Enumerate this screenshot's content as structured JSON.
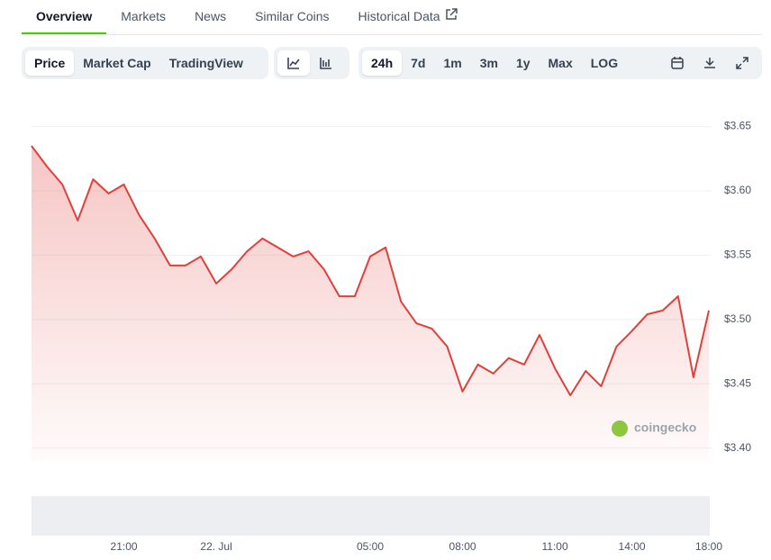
{
  "tabs": [
    "Overview",
    "Markets",
    "News",
    "Similar Coins",
    "Historical Data"
  ],
  "chart_types": [
    "Price",
    "Market Cap",
    "TradingView"
  ],
  "ranges": [
    "24h",
    "7d",
    "1m",
    "3m",
    "1y",
    "Max",
    "LOG"
  ],
  "watermark": "coingecko",
  "chart_data": {
    "type": "line",
    "color": "#e0403a",
    "categories": [
      null,
      null,
      null,
      null,
      null,
      null,
      "21:00",
      null,
      null,
      null,
      null,
      null,
      "22. Jul",
      null,
      null,
      null,
      null,
      null,
      null,
      null,
      null,
      null,
      "05:00",
      null,
      null,
      null,
      null,
      null,
      "08:00",
      null,
      null,
      null,
      null,
      null,
      "11:00",
      null,
      null,
      null,
      null,
      "14:00",
      null,
      null,
      null,
      null,
      "18:00"
    ],
    "series": [
      {
        "name": "Price",
        "color": "#e0403a",
        "values": [
          3.635,
          3.619,
          3.605,
          3.577,
          3.609,
          3.598,
          3.605,
          3.581,
          3.563,
          3.542,
          3.542,
          3.549,
          3.528,
          3.539,
          3.553,
          3.563,
          3.556,
          3.549,
          3.553,
          3.539,
          3.518,
          3.518,
          3.549,
          3.556,
          3.514,
          3.497,
          3.493,
          3.479,
          3.444,
          3.465,
          3.458,
          3.47,
          3.465,
          3.488,
          3.462,
          3.441,
          3.46,
          3.448,
          3.479,
          3.491,
          3.504,
          3.507,
          3.518,
          3.455,
          3.507
        ]
      }
    ],
    "ylim": [
      3.39,
      3.67
    ],
    "yticks": [
      {
        "value": 3.4,
        "label": "$3.40"
      },
      {
        "value": 3.45,
        "label": "$3.45"
      },
      {
        "value": 3.5,
        "label": "$3.50"
      },
      {
        "value": 3.55,
        "label": "$3.55"
      },
      {
        "value": 3.6,
        "label": "$3.60"
      },
      {
        "value": 3.65,
        "label": "$3.65"
      }
    ],
    "grid": true
  }
}
